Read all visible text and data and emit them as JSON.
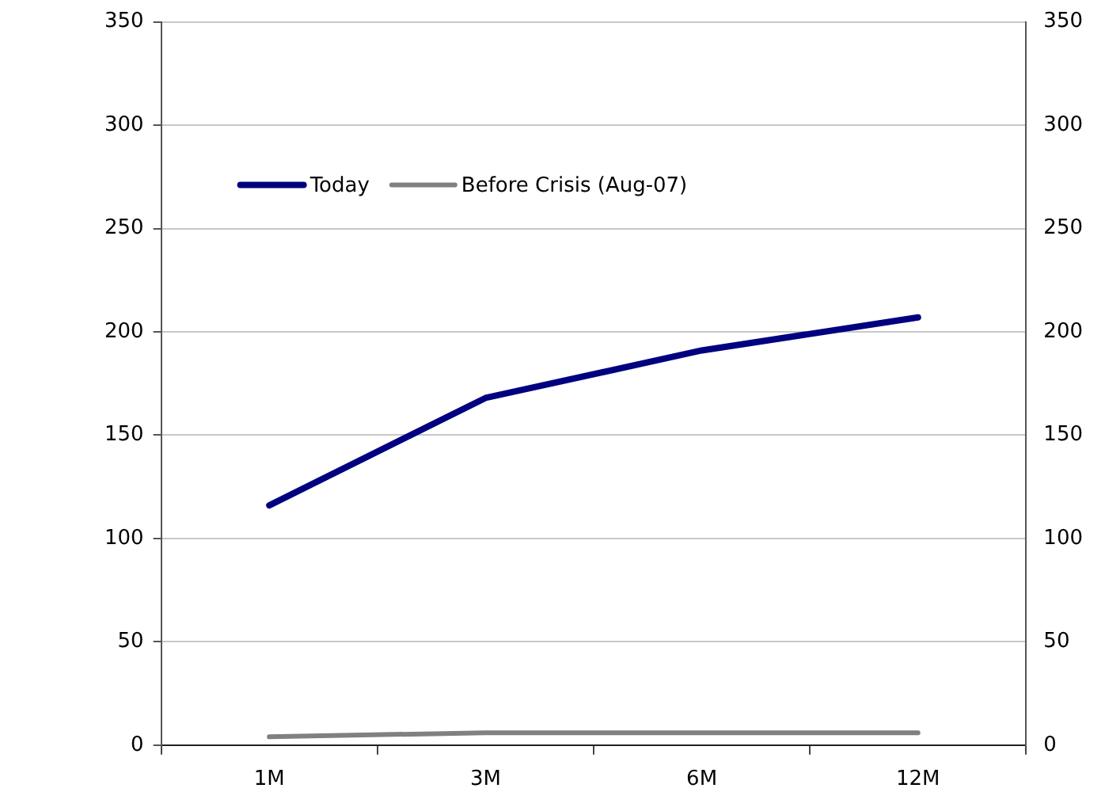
{
  "chart_data": {
    "type": "line",
    "categories": [
      "1M",
      "3M",
      "6M",
      "12M"
    ],
    "series": [
      {
        "name": "Today",
        "color": "#000080",
        "values": [
          116,
          168,
          191,
          207
        ]
      },
      {
        "name": "Before Crisis (Aug-07)",
        "color": "#808080",
        "values": [
          4,
          6,
          6,
          6
        ]
      }
    ],
    "ylim": [
      0,
      350
    ],
    "yticks": [
      0,
      50,
      100,
      150,
      200,
      250,
      300,
      350
    ],
    "y2lim": [
      0,
      350
    ],
    "y2ticks": [
      0,
      50,
      100,
      150,
      200,
      250,
      300,
      350
    ],
    "grid": "y",
    "legend": "top left",
    "marker": "none",
    "line_style": "solid"
  }
}
